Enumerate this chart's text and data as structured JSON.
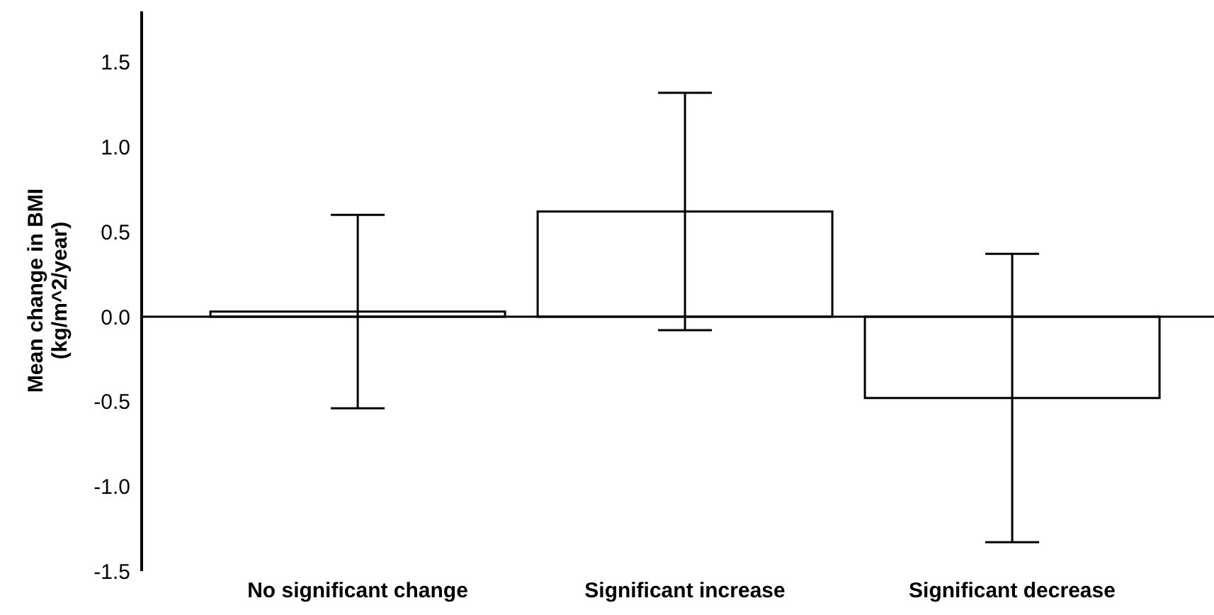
{
  "chart_data": {
    "type": "bar",
    "ylabel": "Mean change in BMI\n(kg/m^2/year)",
    "categories": [
      "No significant change",
      "Significant increase",
      "Significant decrease"
    ],
    "values": [
      0.03,
      0.62,
      -0.48
    ],
    "errors": [
      [
        -0.54,
        0.6
      ],
      [
        -0.08,
        1.32
      ],
      [
        -1.33,
        0.37
      ]
    ],
    "color": "#ffffff",
    "ylim": [
      -1.5,
      1.8
    ],
    "yticks": [
      {
        "value": -1.5,
        "label": "-1.5"
      },
      {
        "value": -1,
        "label": "-1.0"
      },
      {
        "value": -0.5,
        "label": "-0.5"
      },
      {
        "value": 0,
        "label": "0.0"
      },
      {
        "value": 0.5,
        "label": "0.5"
      },
      {
        "value": 1,
        "label": "1.0"
      },
      {
        "value": 1.5,
        "label": "1.5"
      }
    ],
    "ref_lines": [
      {
        "axis": "y",
        "value": 0,
        "color": "#000000"
      }
    ],
    "grid": false,
    "legend": false
  }
}
